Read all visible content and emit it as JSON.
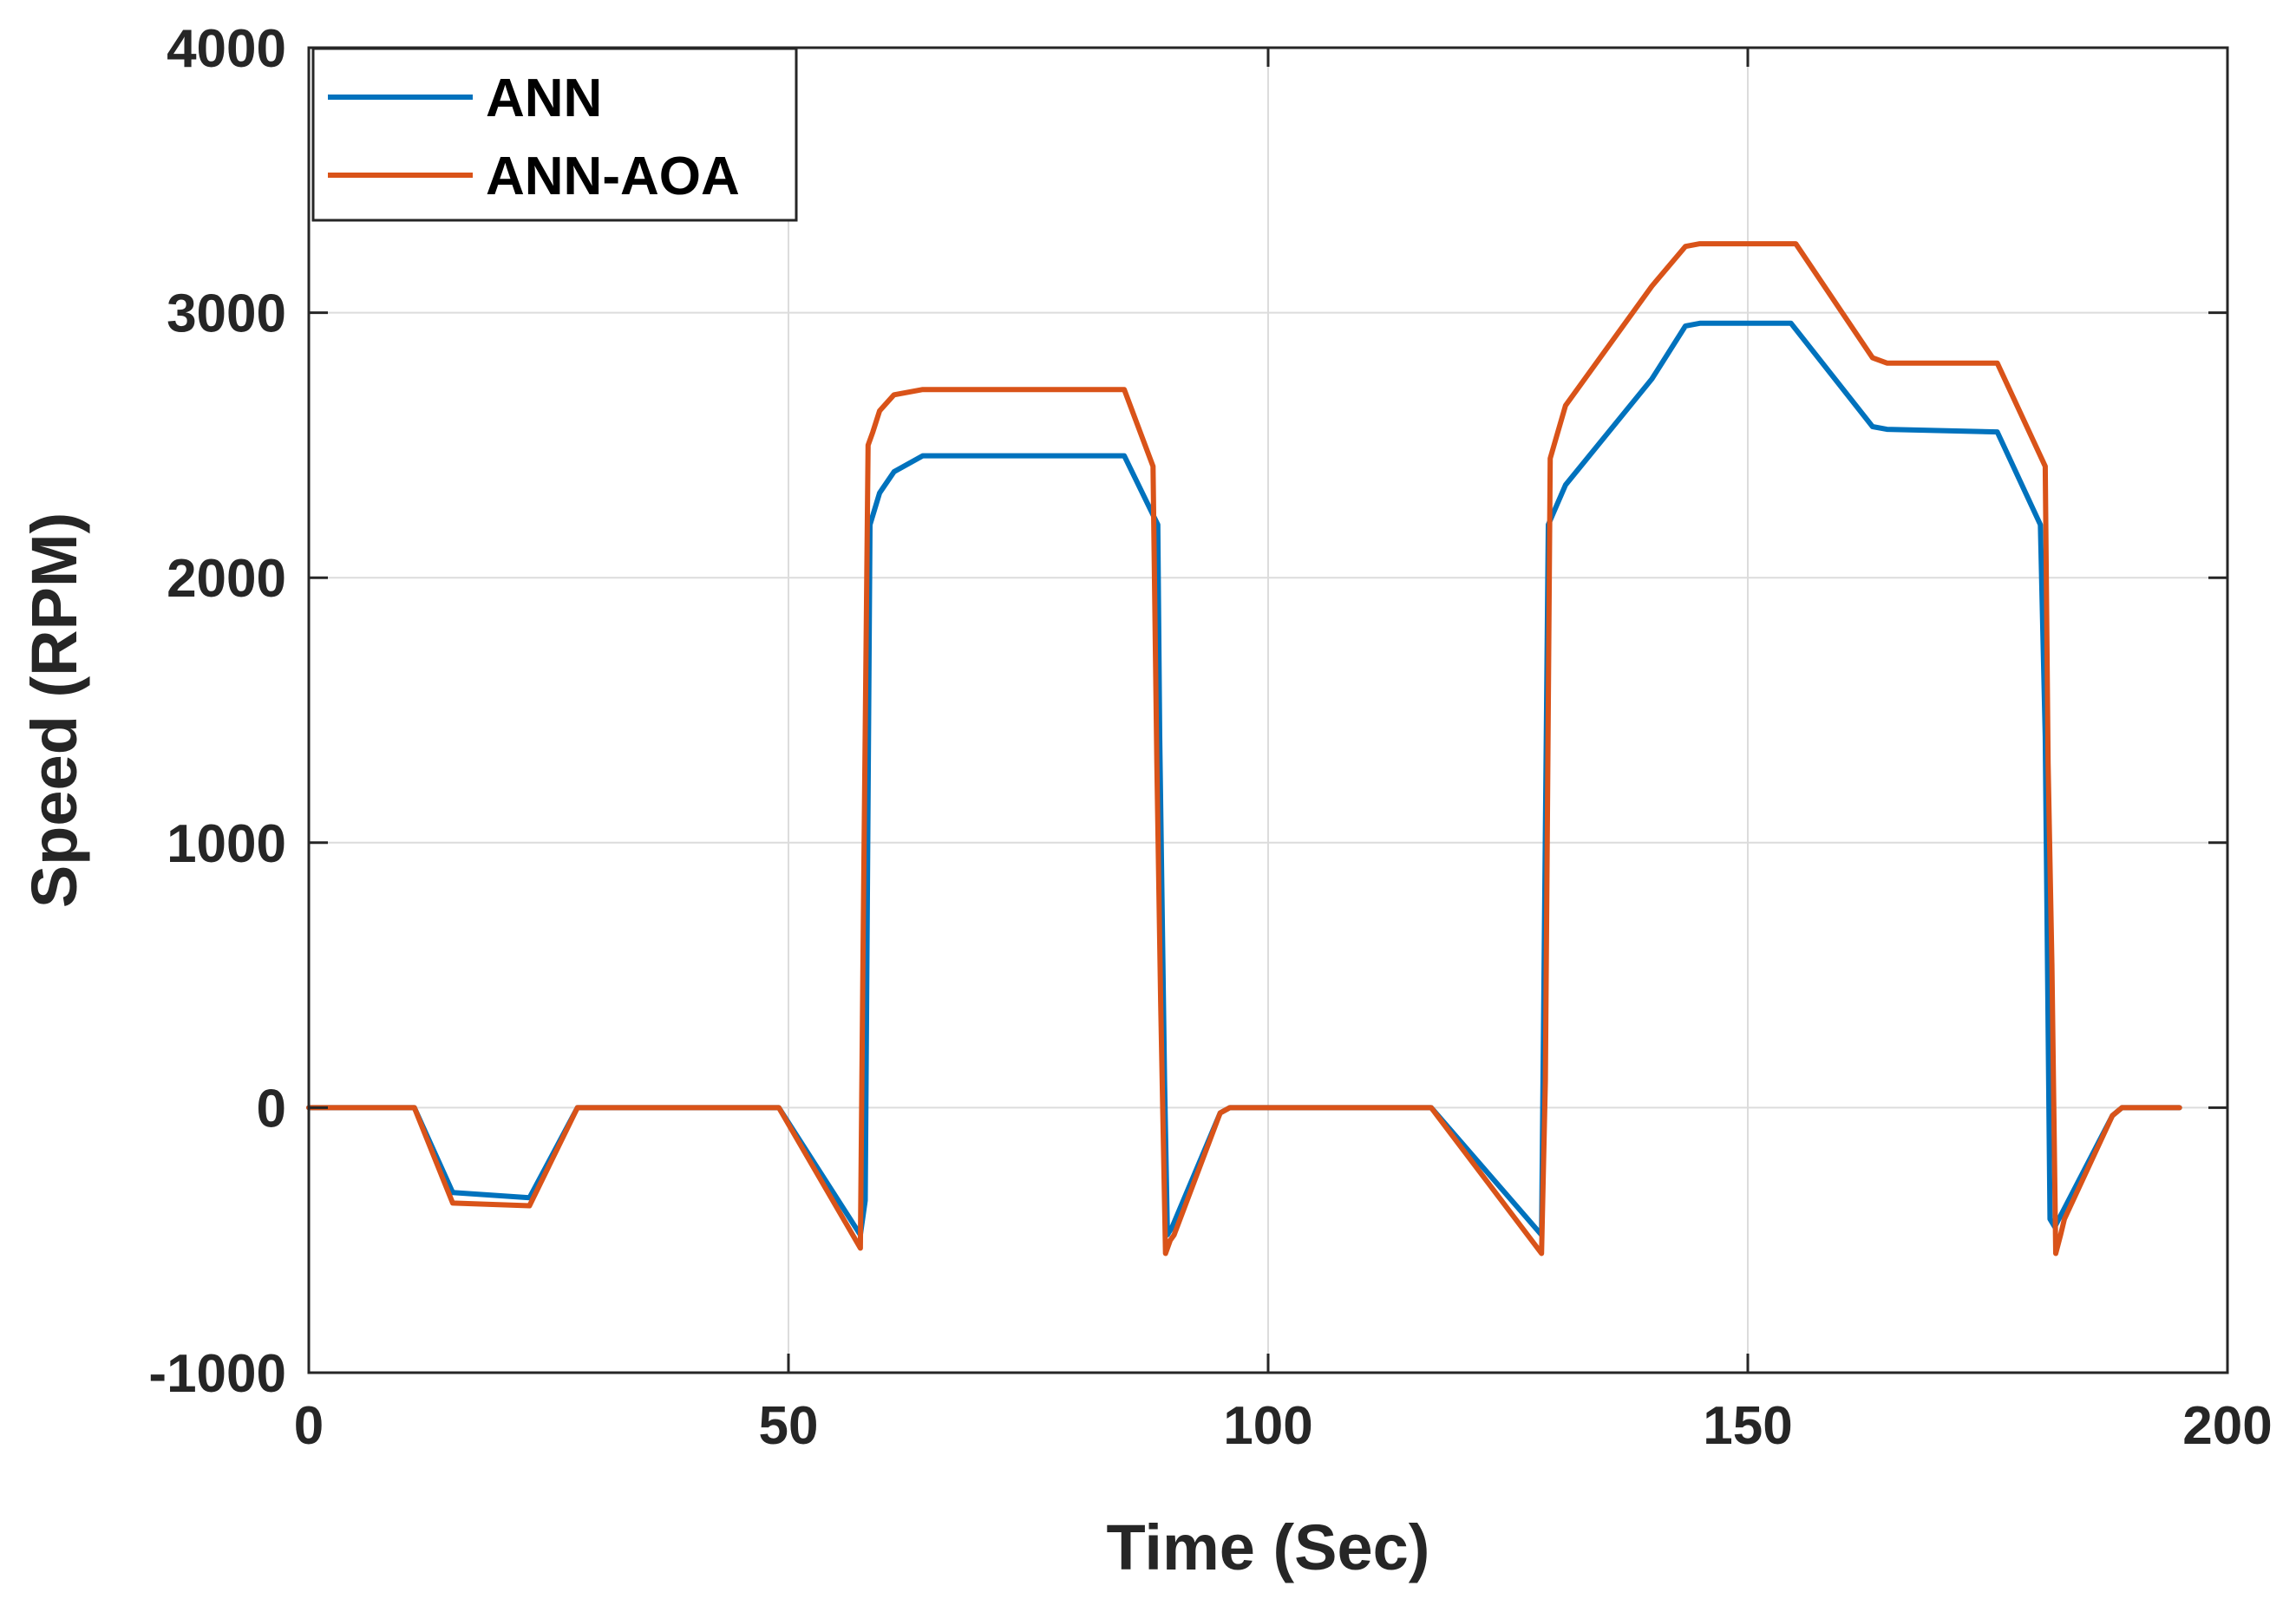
{
  "chart_data": {
    "type": "line",
    "title": "",
    "xlabel": "Time (Sec)",
    "ylabel": "Speed (RPM)",
    "xlim": [
      0,
      200
    ],
    "ylim": [
      -1000,
      4000
    ],
    "xticks": [
      0,
      50,
      100,
      150,
      200
    ],
    "yticks": [
      -1000,
      0,
      1000,
      2000,
      3000,
      4000
    ],
    "xtick_labels": [
      "0",
      "50",
      "100",
      "150",
      "200"
    ],
    "ytick_labels": [
      "-1000",
      "0",
      "1000",
      "2000",
      "3000",
      "4000"
    ],
    "grid": true,
    "legend_position": "top-left",
    "series": [
      {
        "name": "ANN",
        "color": "#0072bd",
        "x": [
          0,
          11,
          15,
          23,
          28,
          49,
          57.5,
          58,
          58.5,
          59.5,
          61,
          64,
          85,
          88.5,
          88.7,
          89.2,
          89.5,
          90,
          95,
          96,
          117,
          128.5,
          129.2,
          129.8,
          131,
          140,
          143.5,
          145,
          154.5,
          163,
          164.5,
          176,
          180.5,
          181,
          181.5,
          182,
          183,
          188,
          189,
          195
        ],
        "y": [
          0,
          0,
          -320,
          -340,
          0,
          0,
          -480,
          -350,
          2200,
          2320,
          2400,
          2460,
          2460,
          2200,
          1400,
          100,
          -480,
          -450,
          -20,
          0,
          0,
          -480,
          2200,
          2250,
          2350,
          2750,
          2950,
          2960,
          2960,
          2570,
          2560,
          2550,
          2200,
          1400,
          -420,
          -450,
          -380,
          -30,
          0,
          0
        ]
      },
      {
        "name": "ANN-AOA",
        "color": "#d95319",
        "x": [
          0,
          11,
          15,
          23,
          28,
          49,
          57.5,
          57.8,
          58.3,
          58.8,
          59.5,
          61,
          64,
          85,
          88,
          88.4,
          88.8,
          89.3,
          89.8,
          90.2,
          95,
          96,
          117,
          128.5,
          128.9,
          129.4,
          129.8,
          131,
          140,
          143.5,
          145,
          155,
          163,
          164.5,
          176,
          181,
          181.3,
          181.7,
          182.1,
          182.6,
          183,
          188,
          189,
          195
        ],
        "y": [
          0,
          0,
          -360,
          -370,
          0,
          0,
          -530,
          700,
          2500,
          2550,
          2630,
          2690,
          2710,
          2710,
          2420,
          1300,
          400,
          -550,
          -500,
          -480,
          -20,
          0,
          0,
          -550,
          100,
          2450,
          2500,
          2650,
          3100,
          3250,
          3260,
          3260,
          2830,
          2810,
          2810,
          2420,
          1300,
          540,
          -550,
          -480,
          -420,
          -30,
          0,
          0
        ]
      }
    ]
  }
}
